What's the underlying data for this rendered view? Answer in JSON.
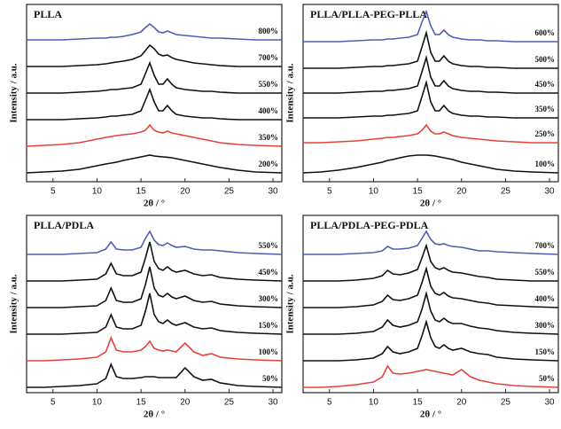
{
  "chart_data": [
    {
      "type": "line",
      "title": "PLLA",
      "xlabel": "2θ / °",
      "ylabel": "Intensity / a.u.",
      "x": [
        2,
        4,
        6,
        8,
        10,
        11,
        11.6,
        12.2,
        13,
        14,
        15,
        15.5,
        16,
        16.5,
        17,
        17.5,
        18,
        18.5,
        19,
        20,
        21,
        22,
        23,
        24,
        26,
        28,
        31
      ],
      "xlim": [
        2,
        31
      ],
      "ylim": [
        0,
        10
      ],
      "xticks": [
        5,
        10,
        15,
        20,
        25,
        30
      ],
      "series": [
        {
          "name": "800%",
          "color": "#4a5fb0",
          "values": [
            8.0,
            8.0,
            8.0,
            8.05,
            8.1,
            8.1,
            8.15,
            8.15,
            8.2,
            8.3,
            8.45,
            8.7,
            8.9,
            8.7,
            8.45,
            8.4,
            8.5,
            8.4,
            8.3,
            8.25,
            8.2,
            8.15,
            8.1,
            8.1,
            8.05,
            8.0,
            8.0
          ]
        },
        {
          "name": "700%",
          "color": "#111111",
          "values": [
            6.5,
            6.5,
            6.5,
            6.55,
            6.6,
            6.65,
            6.7,
            6.75,
            6.8,
            6.9,
            7.1,
            7.4,
            7.7,
            7.5,
            7.2,
            7.1,
            7.15,
            7.0,
            6.9,
            6.8,
            6.7,
            6.65,
            6.6,
            6.55,
            6.5,
            6.5,
            6.5
          ]
        },
        {
          "name": "550%",
          "color": "#111111",
          "values": [
            5.0,
            5.0,
            5.0,
            5.05,
            5.1,
            5.15,
            5.2,
            5.2,
            5.25,
            5.3,
            5.5,
            6.1,
            6.7,
            6.0,
            5.5,
            5.5,
            5.8,
            5.5,
            5.3,
            5.2,
            5.15,
            5.1,
            5.1,
            5.05,
            5.0,
            5.0,
            5.0
          ]
        },
        {
          "name": "400%",
          "color": "#111111",
          "values": [
            3.5,
            3.5,
            3.5,
            3.55,
            3.6,
            3.65,
            3.7,
            3.7,
            3.75,
            3.8,
            4.0,
            4.6,
            5.2,
            4.5,
            4.0,
            4.0,
            4.3,
            4.0,
            3.8,
            3.7,
            3.65,
            3.6,
            3.6,
            3.55,
            3.5,
            3.5,
            3.5
          ]
        },
        {
          "name": "350%",
          "color": "#e8403a",
          "values": [
            2.0,
            2.05,
            2.1,
            2.2,
            2.4,
            2.5,
            2.55,
            2.6,
            2.65,
            2.7,
            2.8,
            2.9,
            3.2,
            2.9,
            2.8,
            2.75,
            2.85,
            2.75,
            2.7,
            2.6,
            2.5,
            2.4,
            2.3,
            2.2,
            2.1,
            2.05,
            2.0
          ]
        },
        {
          "name": "200%",
          "color": "#111111",
          "values": [
            0.5,
            0.55,
            0.6,
            0.7,
            0.9,
            1.0,
            1.05,
            1.1,
            1.2,
            1.3,
            1.4,
            1.45,
            1.5,
            1.45,
            1.42,
            1.4,
            1.38,
            1.35,
            1.3,
            1.2,
            1.1,
            1.0,
            0.9,
            0.8,
            0.65,
            0.55,
            0.5
          ]
        }
      ]
    },
    {
      "type": "line",
      "title": "PLLA/PLLA-PEG-PLLA",
      "xlabel": "2θ / °",
      "ylabel": "Intensity / a.u.",
      "x": [
        2,
        4,
        6,
        8,
        10,
        11,
        11.6,
        12.2,
        13,
        14,
        15,
        15.5,
        16,
        16.5,
        17,
        17.5,
        18,
        18.5,
        19,
        20,
        21,
        22,
        23,
        24,
        26,
        28,
        31
      ],
      "xlim": [
        2,
        31
      ],
      "ylim": [
        0,
        10
      ],
      "xticks": [
        5,
        10,
        15,
        20,
        25,
        30
      ],
      "series": [
        {
          "name": "600%",
          "color": "#4a5fb0",
          "values": [
            7.9,
            7.9,
            7.9,
            7.95,
            8.0,
            8.0,
            8.05,
            8.05,
            8.1,
            8.15,
            8.3,
            9.0,
            9.6,
            8.8,
            8.3,
            8.3,
            8.55,
            8.3,
            8.15,
            8.05,
            8.0,
            8.0,
            7.95,
            7.95,
            7.9,
            7.9,
            7.9
          ]
        },
        {
          "name": "500%",
          "color": "#111111",
          "values": [
            6.4,
            6.4,
            6.4,
            6.45,
            6.5,
            6.5,
            6.55,
            6.55,
            6.6,
            6.65,
            6.8,
            7.6,
            8.4,
            7.3,
            6.8,
            6.8,
            7.1,
            6.8,
            6.65,
            6.55,
            6.5,
            6.5,
            6.45,
            6.45,
            6.4,
            6.4,
            6.4
          ]
        },
        {
          "name": "450%",
          "color": "#111111",
          "values": [
            5.0,
            5.0,
            5.0,
            5.05,
            5.1,
            5.1,
            5.15,
            5.15,
            5.2,
            5.25,
            5.4,
            6.2,
            7.0,
            5.9,
            5.4,
            5.4,
            5.7,
            5.4,
            5.25,
            5.15,
            5.1,
            5.1,
            5.05,
            5.05,
            5.0,
            5.0,
            5.0
          ]
        },
        {
          "name": "350%",
          "color": "#111111",
          "values": [
            3.6,
            3.6,
            3.6,
            3.65,
            3.7,
            3.7,
            3.75,
            3.75,
            3.8,
            3.85,
            4.0,
            4.8,
            5.6,
            4.5,
            4.0,
            4.0,
            4.3,
            4.0,
            3.85,
            3.75,
            3.7,
            3.7,
            3.65,
            3.65,
            3.6,
            3.6,
            3.6
          ]
        },
        {
          "name": "250%",
          "color": "#e8403a",
          "values": [
            2.2,
            2.2,
            2.25,
            2.3,
            2.4,
            2.45,
            2.5,
            2.5,
            2.55,
            2.6,
            2.7,
            2.9,
            3.2,
            2.85,
            2.7,
            2.7,
            2.8,
            2.7,
            2.6,
            2.5,
            2.45,
            2.4,
            2.35,
            2.3,
            2.25,
            2.2,
            2.2
          ]
        },
        {
          "name": "100%",
          "color": "#111111",
          "values": [
            0.5,
            0.55,
            0.65,
            0.8,
            1.0,
            1.1,
            1.2,
            1.25,
            1.35,
            1.45,
            1.5,
            1.5,
            1.5,
            1.48,
            1.45,
            1.4,
            1.35,
            1.3,
            1.25,
            1.1,
            1.0,
            0.9,
            0.8,
            0.7,
            0.6,
            0.55,
            0.5
          ]
        }
      ]
    },
    {
      "type": "line",
      "title": "PLLA/PDLA",
      "xlabel": "2θ / °",
      "ylabel": "Intensity / a.u.",
      "x": [
        2,
        4,
        6,
        8,
        10,
        11,
        11.6,
        12.2,
        13,
        14,
        15,
        15.5,
        16,
        16.5,
        17,
        17.5,
        18,
        18.5,
        19,
        20,
        21,
        22,
        23,
        24,
        26,
        28,
        31
      ],
      "xlim": [
        2,
        31
      ],
      "ylim": [
        0,
        10
      ],
      "xticks": [
        5,
        10,
        15,
        20,
        25,
        30
      ],
      "series": [
        {
          "name": "550%",
          "color": "#4a5fb0",
          "values": [
            7.8,
            7.8,
            7.8,
            7.85,
            7.9,
            8.1,
            8.5,
            8.1,
            8.05,
            8.05,
            8.2,
            8.7,
            9.1,
            8.6,
            8.35,
            8.3,
            8.45,
            8.3,
            8.2,
            8.25,
            8.1,
            8.05,
            8.05,
            8.0,
            7.9,
            7.85,
            7.8
          ]
        },
        {
          "name": "450%",
          "color": "#111111",
          "values": [
            6.3,
            6.3,
            6.3,
            6.35,
            6.4,
            6.7,
            7.3,
            6.7,
            6.6,
            6.6,
            6.8,
            7.6,
            8.5,
            7.4,
            7.0,
            6.9,
            7.1,
            6.9,
            6.8,
            6.9,
            6.7,
            6.6,
            6.65,
            6.5,
            6.4,
            6.35,
            6.3
          ]
        },
        {
          "name": "300%",
          "color": "#111111",
          "values": [
            4.8,
            4.8,
            4.8,
            4.85,
            4.9,
            5.2,
            5.9,
            5.2,
            5.1,
            5.1,
            5.3,
            6.1,
            7.1,
            5.9,
            5.5,
            5.4,
            5.6,
            5.4,
            5.3,
            5.45,
            5.2,
            5.1,
            5.15,
            5.0,
            4.9,
            4.85,
            4.8
          ]
        },
        {
          "name": "150%",
          "color": "#111111",
          "values": [
            3.3,
            3.3,
            3.3,
            3.35,
            3.4,
            3.7,
            4.4,
            3.7,
            3.6,
            3.6,
            3.8,
            4.6,
            5.6,
            4.4,
            4.0,
            3.9,
            4.1,
            3.9,
            3.8,
            3.95,
            3.7,
            3.6,
            3.65,
            3.5,
            3.4,
            3.35,
            3.3
          ]
        },
        {
          "name": "100%",
          "color": "#e8403a",
          "values": [
            1.8,
            1.8,
            1.85,
            1.9,
            2.0,
            2.3,
            3.1,
            2.4,
            2.3,
            2.3,
            2.4,
            2.6,
            2.9,
            2.5,
            2.4,
            2.35,
            2.4,
            2.35,
            2.3,
            2.8,
            2.3,
            2.1,
            2.2,
            2.0,
            1.9,
            1.85,
            1.8
          ]
        },
        {
          "name": "50%",
          "color": "#111111",
          "values": [
            0.3,
            0.3,
            0.35,
            0.4,
            0.5,
            0.8,
            1.6,
            0.9,
            0.8,
            0.8,
            0.85,
            0.9,
            0.9,
            0.9,
            0.85,
            0.85,
            0.85,
            0.85,
            0.85,
            1.4,
            0.9,
            0.7,
            0.75,
            0.55,
            0.4,
            0.35,
            0.3
          ]
        }
      ]
    },
    {
      "type": "line",
      "title": "PLLA/PDLA-PEG-PDLA",
      "xlabel": "2θ / °",
      "ylabel": "Intensity / a.u.",
      "x": [
        2,
        4,
        6,
        8,
        10,
        11,
        11.6,
        12.2,
        13,
        14,
        15,
        15.5,
        16,
        16.5,
        17,
        17.5,
        18,
        18.5,
        19,
        20,
        21,
        22,
        23,
        24,
        26,
        28,
        31
      ],
      "xlim": [
        2,
        31
      ],
      "ylim": [
        0,
        10
      ],
      "xticks": [
        5,
        10,
        15,
        20,
        25,
        30
      ],
      "series": [
        {
          "name": "700%",
          "color": "#4a5fb0",
          "values": [
            7.8,
            7.8,
            7.8,
            7.85,
            7.9,
            8.0,
            8.25,
            8.1,
            8.1,
            8.15,
            8.3,
            8.7,
            9.1,
            8.65,
            8.4,
            8.35,
            8.4,
            8.3,
            8.25,
            8.2,
            8.1,
            8.0,
            8.0,
            7.95,
            7.9,
            7.85,
            7.8
          ]
        },
        {
          "name": "550%",
          "color": "#111111",
          "values": [
            6.3,
            6.3,
            6.3,
            6.35,
            6.45,
            6.6,
            6.9,
            6.7,
            6.65,
            6.75,
            6.95,
            7.6,
            8.3,
            7.4,
            7.05,
            6.95,
            7.05,
            6.9,
            6.8,
            6.75,
            6.65,
            6.55,
            6.5,
            6.4,
            6.35,
            6.3,
            6.3
          ]
        },
        {
          "name": "400%",
          "color": "#111111",
          "values": [
            4.8,
            4.8,
            4.8,
            4.85,
            4.95,
            5.15,
            5.5,
            5.25,
            5.2,
            5.3,
            5.5,
            6.2,
            7.0,
            6.0,
            5.6,
            5.5,
            5.65,
            5.45,
            5.35,
            5.3,
            5.2,
            5.1,
            5.05,
            4.95,
            4.9,
            4.85,
            4.8
          ]
        },
        {
          "name": "300%",
          "color": "#111111",
          "values": [
            3.3,
            3.3,
            3.3,
            3.35,
            3.45,
            3.7,
            4.1,
            3.8,
            3.7,
            3.8,
            4.0,
            4.7,
            5.6,
            4.6,
            4.1,
            4.0,
            4.2,
            4.0,
            3.9,
            3.9,
            3.75,
            3.65,
            3.6,
            3.5,
            3.4,
            3.35,
            3.3
          ]
        },
        {
          "name": "150%",
          "color": "#111111",
          "values": [
            1.8,
            1.8,
            1.8,
            1.85,
            1.95,
            2.2,
            2.6,
            2.3,
            2.2,
            2.3,
            2.5,
            3.2,
            4.0,
            3.1,
            2.6,
            2.5,
            2.7,
            2.5,
            2.4,
            2.5,
            2.3,
            2.2,
            2.15,
            2.0,
            1.9,
            1.85,
            1.8
          ]
        },
        {
          "name": "50%",
          "color": "#e8403a",
          "values": [
            0.3,
            0.3,
            0.35,
            0.45,
            0.6,
            0.9,
            1.5,
            1.1,
            1.05,
            1.1,
            1.2,
            1.25,
            1.3,
            1.25,
            1.2,
            1.15,
            1.1,
            1.05,
            1.0,
            1.3,
            0.9,
            0.7,
            0.6,
            0.5,
            0.4,
            0.35,
            0.3
          ]
        }
      ]
    }
  ]
}
